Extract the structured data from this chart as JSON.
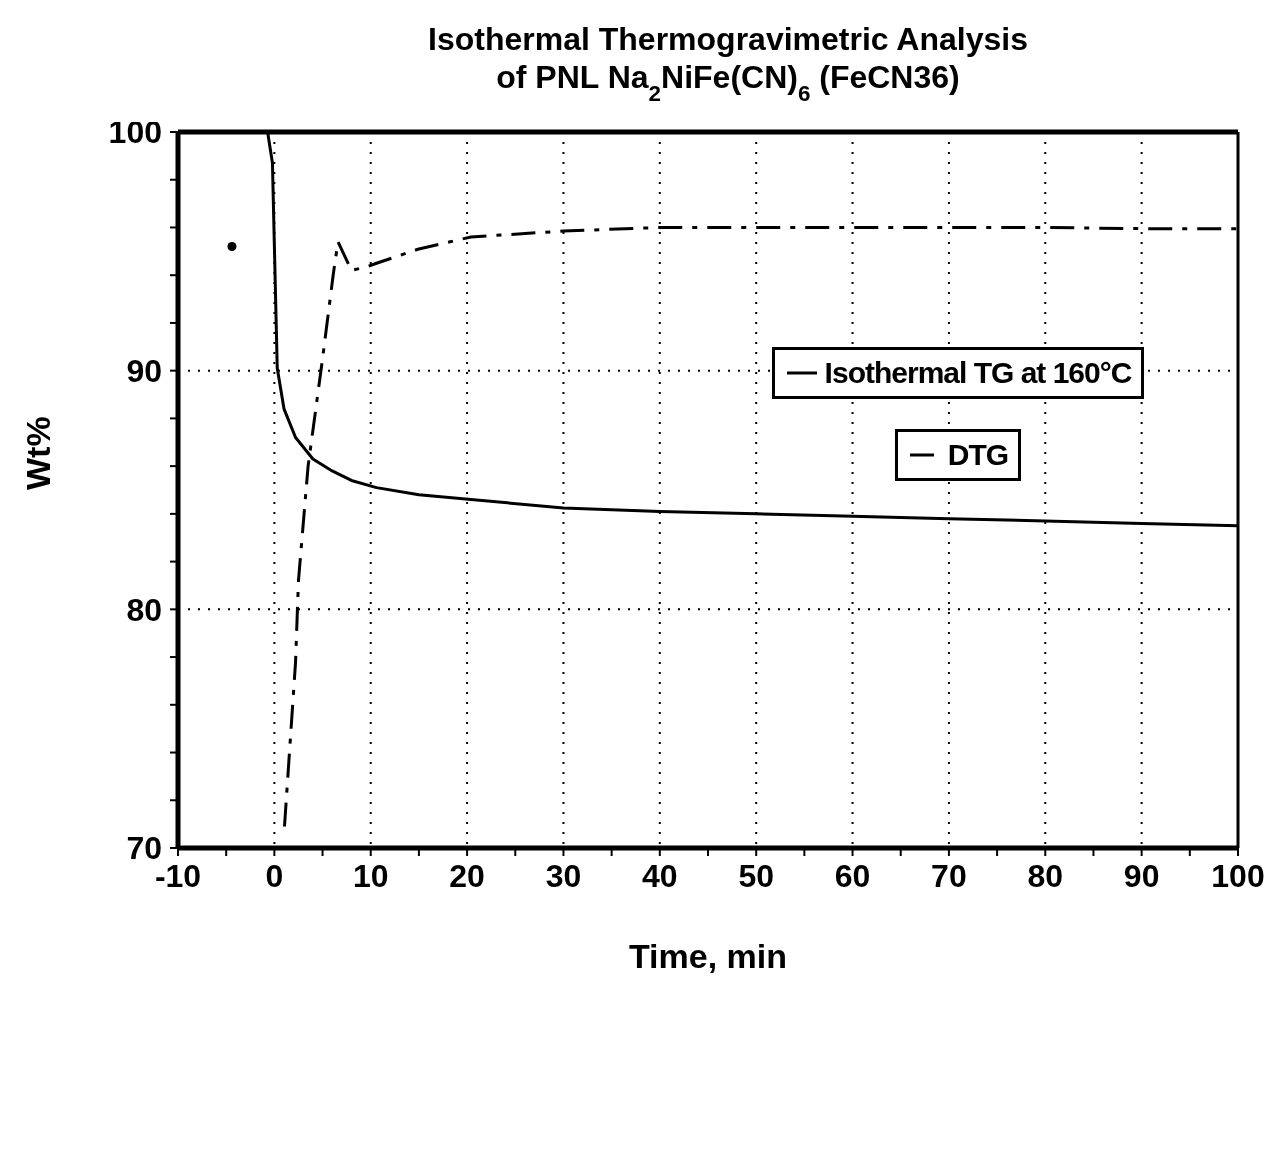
{
  "chart_data": {
    "type": "line",
    "title": "Isothermal Thermogravimetric Analysis",
    "subtitle": "of PNL Na$_{2}$NiFe(CN)$_{6}$ (FeCN36)",
    "xlabel": "Time, min",
    "ylabel": "Wt%",
    "xlim": [
      -10,
      100
    ],
    "ylim": [
      70,
      100
    ],
    "xticks": [
      -10,
      {
        "value": -5,
        "label": null
      },
      0,
      {
        "value": 5,
        "label": null
      },
      10,
      {
        "value": 15,
        "label": null
      },
      20,
      {
        "value": 25,
        "label": null
      },
      30,
      {
        "value": 35,
        "label": null
      },
      40,
      {
        "value": 45,
        "label": null
      },
      50,
      {
        "value": 55,
        "label": null
      },
      60,
      {
        "value": 65,
        "label": null
      },
      70,
      {
        "value": 75,
        "label": null
      },
      80,
      {
        "value": 85,
        "label": null
      },
      90,
      {
        "value": 95,
        "label": null
      },
      100
    ],
    "yticks": [
      70,
      {
        "value": 72,
        "label": null
      },
      {
        "value": 74,
        "label": null
      },
      {
        "value": 76,
        "label": null
      },
      {
        "value": 78,
        "label": null
      },
      80,
      {
        "value": 82,
        "label": null
      },
      {
        "value": 84,
        "label": null
      },
      {
        "value": 86,
        "label": null
      },
      {
        "value": 88,
        "label": null
      },
      90,
      {
        "value": 92,
        "label": null
      },
      {
        "value": 94,
        "label": null
      },
      {
        "value": 96,
        "label": null
      },
      {
        "value": 98,
        "label": null
      },
      100
    ],
    "grid": true,
    "legend": "right",
    "marker": "none",
    "series": [
      {
        "name": "Isothermal TG at 160°C",
        "color": "#000000",
        "line_style": "solid",
        "x": [
          -0.7,
          -0.2,
          0.3,
          1.0,
          2.2,
          4.0,
          6.0,
          8.0,
          10.6,
          15,
          20.4,
          30,
          40,
          50,
          60,
          70,
          80,
          90,
          100
        ],
        "values": [
          100,
          98.7,
          90.1,
          88.4,
          87.2,
          86.3,
          85.8,
          85.4,
          85.1,
          84.8,
          84.6,
          84.25,
          84.1,
          84.0,
          83.9,
          83.8,
          83.7,
          83.6,
          83.5
        ]
      },
      {
        "name": "DTG",
        "color": "#000000",
        "line_style": "dashed",
        "x": [
          1.05,
          2.2,
          2.5,
          3.5,
          5.0,
          6.1,
          6.6,
          8.0,
          9.6,
          10.6,
          15,
          20.4,
          30,
          40,
          50,
          60,
          70,
          80,
          90,
          100
        ],
        "values": [
          70.9,
          77.8,
          81.2,
          86,
          90.5,
          94.0,
          95.4,
          94.2,
          94.35,
          94.5,
          95.1,
          95.6,
          95.85,
          96.0,
          96.0,
          96.0,
          96.0,
          96.0,
          95.95,
          95.95
        ]
      },
      {
        "type": "scatter",
        "marker": "circle",
        "color": "#000000",
        "x": [
          -4.4
        ],
        "values": [
          95.2
        ]
      }
    ]
  }
}
